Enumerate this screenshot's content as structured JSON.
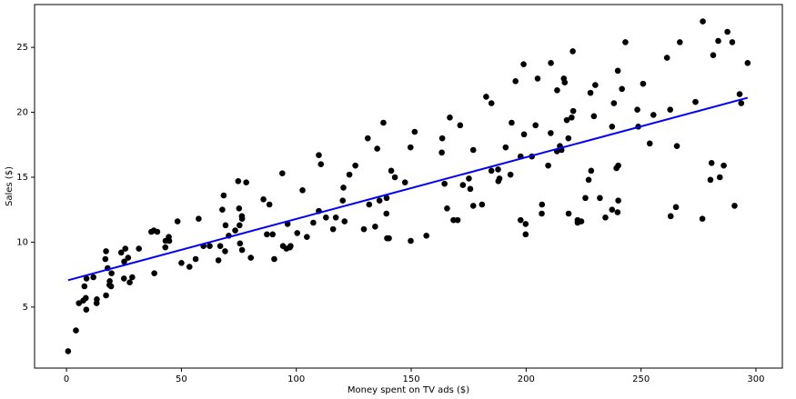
{
  "chart_data": {
    "type": "scatter",
    "x_label": "Money spent on TV ads ($)",
    "y_label": "Sales ($)",
    "xlim": [
      -13.9,
      311.5
    ],
    "ylim": [
      0.3,
      28.3
    ],
    "xticks": [
      0,
      50,
      100,
      150,
      200,
      250,
      300
    ],
    "yticks": [
      5,
      10,
      15,
      20,
      25
    ],
    "series": [
      {
        "type": "scatter",
        "color": "#000000",
        "x": [
          230.1,
          44.5,
          17.2,
          151.5,
          180.8,
          8.7,
          57.5,
          120.2,
          8.6,
          199.8,
          66.1,
          214.7,
          23.8,
          97.5,
          204.1,
          195.4,
          67.8,
          281.4,
          69.2,
          147.3,
          218.4,
          237.4,
          13.2,
          228.3,
          62.3,
          262.9,
          142.9,
          240.1,
          248.8,
          70.6,
          292.9,
          112.9,
          97.2,
          265.6,
          95.7,
          290.7,
          266.9,
          74.7,
          43.1,
          228,
          202.5,
          177,
          293.6,
          206.9,
          25.1,
          175.1,
          89.7,
          239.9,
          227.2,
          66.9,
          199.8,
          100.4,
          216.4,
          182.6,
          262.7,
          198.9,
          7.3,
          136.2,
          210.8,
          210.7,
          53.5,
          261.3,
          239.3,
          102.7,
          131.1,
          69,
          31.5,
          139.3,
          237.4,
          216.8,
          199.1,
          109.8,
          26.8,
          129.4,
          213.4,
          16.9,
          27.5,
          120.5,
          5.4,
          116,
          76.4,
          239.8,
          75.3,
          68.4,
          213.5,
          193.2,
          76.3,
          110.7,
          88.3,
          109.8,
          134.3,
          28.6,
          217.7,
          250.9,
          107.4,
          163.3,
          197.6,
          184.9,
          289.7,
          135.2,
          222.4,
          296.4,
          280.2,
          187.9,
          238.2,
          137.9,
          25,
          90.4,
          13.1,
          255.4,
          225.8,
          241.7,
          175.7,
          209.6,
          78.2,
          75.1,
          139.2,
          76.4,
          125.7,
          19.4,
          141.3,
          18.8,
          224,
          123.1,
          229.5,
          87.2,
          7.8,
          80.2,
          220.3,
          59.6,
          0.7,
          265.2,
          8.4,
          219.8,
          36.9,
          48.3,
          25.6,
          273.7,
          43,
          184.9,
          73.4,
          193.7,
          220.5,
          104.6,
          96.2,
          140.3,
          240.1,
          243.2,
          38,
          44.7,
          280.7,
          121,
          197.6,
          171.3,
          187.8,
          4.1,
          93.9,
          149.8,
          11.7,
          131.7,
          172.5,
          85.7,
          188.4,
          163.5,
          117.2,
          234.5,
          17.9,
          206.8,
          215.4,
          284.3,
          50,
          164.5,
          19.6,
          168.4,
          222.4,
          276.9,
          248.4,
          170.2,
          276.7,
          165.6,
          156.6,
          218.5,
          56.2,
          287.6,
          253.8,
          205,
          139.5,
          191.1,
          286,
          18.7,
          39.5,
          75.5,
          17.2,
          166.8,
          149.7,
          38.2,
          94.2,
          177,
          283.6,
          232.1
        ],
        "values": [
          22.1,
          10.4,
          9.3,
          18.5,
          12.9,
          7.2,
          11.8,
          13.2,
          4.8,
          10.6,
          8.6,
          17.4,
          9.2,
          9.7,
          19,
          22.4,
          12.5,
          24.4,
          11.3,
          14.6,
          18,
          12.5,
          5.6,
          15.5,
          9.7,
          12,
          15,
          15.9,
          18.9,
          10.5,
          21.4,
          11.9,
          9.6,
          17.4,
          9.5,
          12.8,
          25.4,
          14.7,
          10.1,
          21.5,
          16.6,
          17.1,
          20.7,
          12.9,
          8.5,
          14.9,
          10.6,
          23.2,
          14.8,
          9.7,
          11.4,
          10.7,
          22.6,
          21.2,
          20.2,
          23.7,
          5.5,
          13.2,
          23.8,
          18.4,
          8.1,
          24.2,
          15.7,
          14,
          18,
          9.3,
          9.5,
          13.4,
          18.9,
          22.3,
          18.3,
          12.4,
          8.8,
          11,
          17,
          8.7,
          6.9,
          14.2,
          5.3,
          11,
          11.8,
          12.3,
          11.3,
          13.6,
          21.7,
          15.2,
          12,
          16,
          12.9,
          16.7,
          11.2,
          7.3,
          19.4,
          22.2,
          11.5,
          16.9,
          11.7,
          15.5,
          25.4,
          17.2,
          11.7,
          23.8,
          14.8,
          14.7,
          20.7,
          19.2,
          7.2,
          8.7,
          5.3,
          19.8,
          13.4,
          21.8,
          14.1,
          15.9,
          14.6,
          12.6,
          12.2,
          9.4,
          15.9,
          6.6,
          15.5,
          7,
          11.6,
          15.2,
          19.7,
          10.6,
          6.6,
          8.8,
          24.7,
          9.7,
          1.6,
          12.7,
          5.7,
          19.6,
          10.8,
          11.6,
          9.5,
          20.8,
          9.6,
          20.7,
          10.9,
          19.2,
          20.1,
          10.4,
          11.4,
          10.3,
          13.2,
          25.4,
          10.9,
          10.1,
          16.1,
          11.6,
          16.6,
          19,
          15.6,
          3.2,
          15.3,
          10.1,
          7.3,
          12.9,
          14.4,
          13.3,
          14.9,
          18,
          11.9,
          11.9,
          8,
          12.2,
          17.1,
          15,
          8.4,
          14.5,
          7.6,
          11.7,
          11.5,
          27,
          20.2,
          11.7,
          11.8,
          12.6,
          10.5,
          12.2,
          8.7,
          26.2,
          17.6,
          22.6,
          10.3,
          17.3,
          15.9,
          6.7,
          10.8,
          9.9,
          5.9,
          19.6,
          17.3,
          7.6,
          9.7,
          12.8,
          25.5,
          13.4
        ]
      },
      {
        "type": "line",
        "color": "#0000ff",
        "x": [
          0.7,
          296.4
        ],
        "values": [
          7.07,
          21.12
        ]
      }
    ]
  }
}
